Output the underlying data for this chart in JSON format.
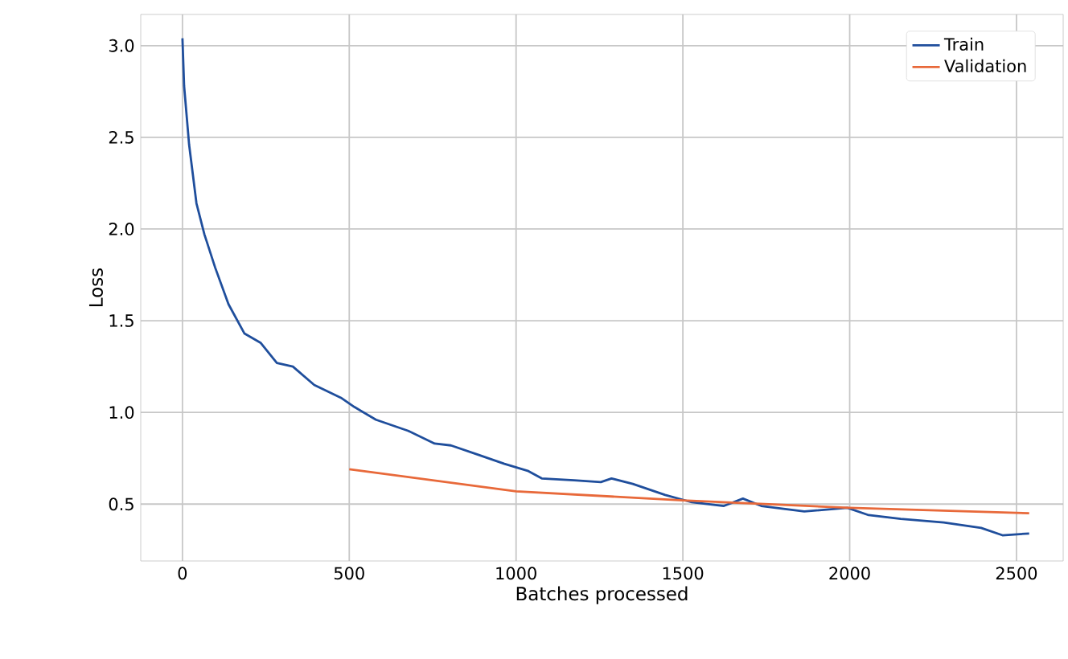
{
  "chart_data": {
    "type": "line",
    "xlabel": "Batches processed",
    "ylabel": "Loss",
    "xlim": [
      -125,
      2640
    ],
    "ylim": [
      0.19,
      3.17
    ],
    "xticks": [
      0,
      500,
      1000,
      1500,
      2000,
      2500
    ],
    "yticks": [
      0.5,
      {
        "value": 1,
        "label": "1.0"
      },
      1.5,
      {
        "value": 2,
        "label": "2.0"
      },
      2.5,
      {
        "value": 3,
        "label": "3.0"
      }
    ],
    "grid": true,
    "legend": "top right",
    "marker": "none",
    "line_style": "solid",
    "series": [
      {
        "name": "Train",
        "color": "#1f4e9c",
        "x": [
          0,
          5,
          20,
          42,
          66,
          98,
          138,
          186,
          234,
          283,
          331,
          395,
          475,
          515,
          580,
          676,
          756,
          805,
          885,
          965,
          1037,
          1077,
          1174,
          1254,
          1286,
          1350,
          1447,
          1527,
          1623,
          1680,
          1735,
          1864,
          1993,
          2057,
          2153,
          2282,
          2394,
          2458,
          2538
        ],
        "values": [
          3.04,
          2.78,
          2.46,
          2.14,
          1.97,
          1.79,
          1.59,
          1.43,
          1.38,
          1.27,
          1.25,
          1.15,
          1.08,
          1.03,
          0.96,
          0.9,
          0.83,
          0.82,
          0.77,
          0.72,
          0.68,
          0.64,
          0.63,
          0.62,
          0.64,
          0.61,
          0.55,
          0.51,
          0.49,
          0.53,
          0.49,
          0.46,
          0.48,
          0.44,
          0.42,
          0.4,
          0.37,
          0.33,
          0.34
        ]
      },
      {
        "name": "Validation",
        "color": "#e8693a",
        "x": [
          500,
          1000,
          1500,
          2000,
          2538
        ],
        "values": [
          0.69,
          0.57,
          0.52,
          0.48,
          0.45
        ]
      }
    ]
  }
}
